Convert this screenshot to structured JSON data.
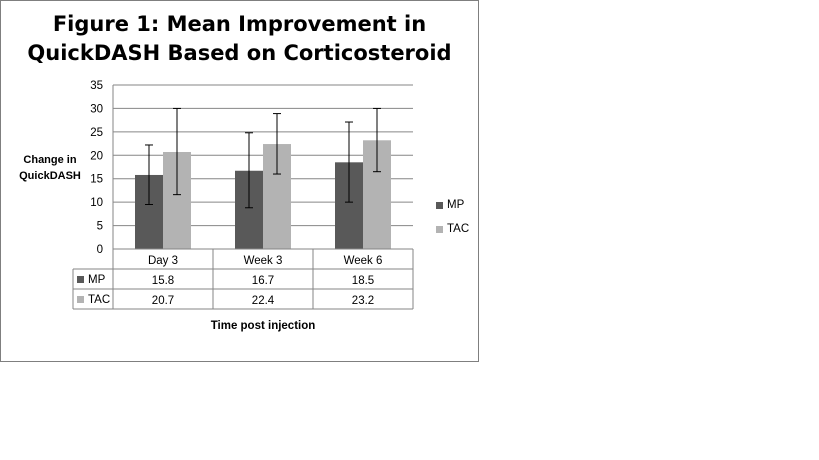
{
  "chart_data": {
    "type": "bar",
    "title_lines": [
      "Figure 1: Mean Improvement in",
      "QuickDASH Based on Corticosteroid"
    ],
    "ylabel_lines": [
      "Change in",
      "QuickDASH"
    ],
    "xlabel": "Time post injection",
    "ylim": [
      0,
      35
    ],
    "yticks": [
      0,
      5,
      10,
      15,
      20,
      25,
      30,
      35
    ],
    "grid": true,
    "legend_position": "right",
    "categories": [
      "Day 3",
      "Week 3",
      "Week 6"
    ],
    "series": [
      {
        "name": "MP",
        "color": "#595959",
        "values": [
          15.8,
          16.7,
          18.5
        ],
        "error_low": [
          9.5,
          8.8,
          10.0
        ],
        "error_high": [
          22.2,
          24.8,
          27.1
        ],
        "labels": [
          "15.8",
          "16.7",
          "18.5"
        ]
      },
      {
        "name": "TAC",
        "color": "#b3b3b3",
        "values": [
          20.7,
          22.4,
          23.2
        ],
        "error_low": [
          11.6,
          16.0,
          16.5
        ],
        "error_high": [
          30.0,
          28.9,
          30.0
        ],
        "labels": [
          "20.7",
          "22.4",
          "23.2"
        ]
      }
    ]
  }
}
